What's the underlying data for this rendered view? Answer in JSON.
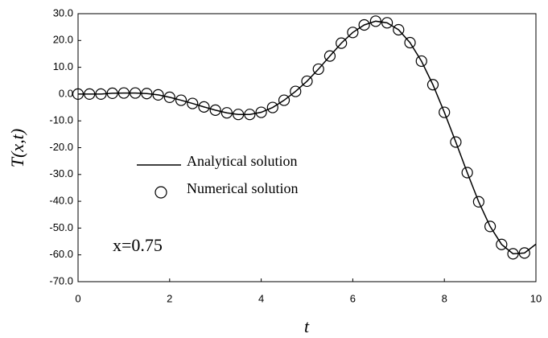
{
  "chart_data": {
    "type": "line",
    "x_label": "t",
    "y_label": "T(x,t)",
    "annotation": "x=0.75",
    "xlim": [
      0,
      10
    ],
    "xticks": [
      0,
      2,
      4,
      6,
      8,
      10
    ],
    "ylim": [
      -70,
      30
    ],
    "yticks": [
      {
        "value": 30,
        "label": "30.0"
      },
      {
        "value": 20,
        "label": "20.0"
      },
      {
        "value": 10,
        "label": "10.0"
      },
      {
        "value": 0,
        "label": "0.0"
      },
      {
        "value": -10,
        "label": "-10.0"
      },
      {
        "value": -20,
        "label": "-20.0"
      },
      {
        "value": -30,
        "label": "-30.0"
      },
      {
        "value": -40,
        "label": "-40.0"
      },
      {
        "value": -50,
        "label": "-50.0"
      },
      {
        "value": -60,
        "label": "-60.0"
      },
      {
        "value": -70,
        "label": "-70.0"
      }
    ],
    "series": [
      {
        "name": "Analytical solution",
        "color": "#000000",
        "style": "line",
        "x": [
          0,
          0.25,
          0.5,
          0.75,
          1,
          1.25,
          1.5,
          1.75,
          2,
          2.25,
          2.5,
          2.75,
          3,
          3.25,
          3.5,
          3.75,
          4,
          4.25,
          4.5,
          4.75,
          5,
          5.25,
          5.5,
          5.75,
          6,
          6.25,
          6.5,
          6.75,
          7,
          7.25,
          7.5,
          7.75,
          8,
          8.25,
          8.5,
          8.75,
          9,
          9.25,
          9.5,
          9.75,
          10
        ],
        "values": [
          0,
          0,
          0,
          0.3,
          0.4,
          0.4,
          0.2,
          -0.3,
          -1.2,
          -2.3,
          -3.5,
          -4.8,
          -6,
          -7,
          -7.6,
          -7.6,
          -6.8,
          -5,
          -2.3,
          1,
          4.8,
          9.3,
          14.2,
          19,
          23,
          25.8,
          27.2,
          26.6,
          24,
          19.2,
          12.3,
          3.5,
          -6.8,
          -17.9,
          -29.3,
          -40.2,
          -49.4,
          -56.1,
          -59.6,
          -59.3,
          -56
        ]
      },
      {
        "name": "Numerical solution",
        "color": "#000000",
        "style": "marker",
        "x": [
          0,
          0.25,
          0.5,
          0.75,
          1,
          1.25,
          1.5,
          1.75,
          2,
          2.25,
          2.5,
          2.75,
          3,
          3.25,
          3.5,
          3.75,
          4,
          4.25,
          4.5,
          4.75,
          5,
          5.25,
          5.5,
          5.75,
          6,
          6.25,
          6.5,
          6.75,
          7,
          7.25,
          7.5,
          7.75,
          8,
          8.25,
          8.5,
          8.75,
          9,
          9.25,
          9.5,
          9.75
        ],
        "values": [
          0,
          0,
          0,
          0.3,
          0.4,
          0.4,
          0.2,
          -0.3,
          -1.2,
          -2.3,
          -3.5,
          -4.8,
          -6,
          -7,
          -7.6,
          -7.6,
          -6.8,
          -5,
          -2.3,
          1,
          4.8,
          9.3,
          14.2,
          19,
          23,
          25.8,
          27.2,
          26.6,
          24,
          19.2,
          12.3,
          3.5,
          -6.8,
          -17.9,
          -29.3,
          -40.2,
          -49.4,
          -56.1,
          -59.6,
          -59.3
        ]
      }
    ]
  }
}
